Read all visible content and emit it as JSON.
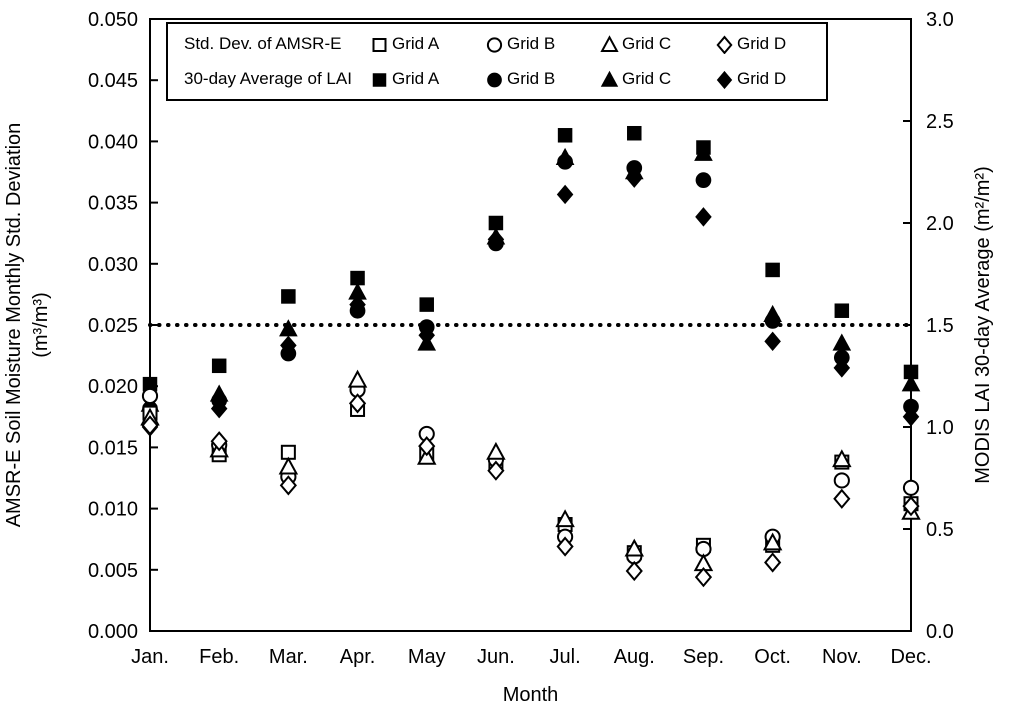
{
  "chart_data": {
    "type": "scatter",
    "title": "",
    "xlabel": "Month",
    "months": [
      "Jan.",
      "Feb.",
      "Mar.",
      "Apr.",
      "May",
      "Jun.",
      "Jul.",
      "Aug.",
      "Sep.",
      "Oct.",
      "Nov.",
      "Dec."
    ],
    "left_axis": {
      "title_lines": [
        "AMSR-E Soil Moisture Monthly Std. Deviation",
        "(m³/m³)"
      ],
      "min": 0,
      "max": 0.05,
      "ticks": [
        {
          "value": 0.0,
          "label": "0.000"
        },
        {
          "value": 0.005,
          "label": "0.005"
        },
        {
          "value": 0.01,
          "label": "0.010"
        },
        {
          "value": 0.015,
          "label": "0.015"
        },
        {
          "value": 0.02,
          "label": "0.020"
        },
        {
          "value": 0.025,
          "label": "0.025"
        },
        {
          "value": 0.03,
          "label": "0.030"
        },
        {
          "value": 0.035,
          "label": "0.035"
        },
        {
          "value": 0.04,
          "label": "0.040"
        },
        {
          "value": 0.045,
          "label": "0.045"
        },
        {
          "value": 0.05,
          "label": "0.050"
        }
      ]
    },
    "right_axis": {
      "title": "MODIS LAI 30-day Average (m²/m²)",
      "min": 0,
      "max": 3,
      "ticks": [
        {
          "value": 0.0,
          "label": "0.0"
        },
        {
          "value": 0.5,
          "label": "0.5"
        },
        {
          "value": 1.0,
          "label": "1.0"
        },
        {
          "value": 1.5,
          "label": "1.5"
        },
        {
          "value": 2.0,
          "label": "2.0"
        },
        {
          "value": 2.5,
          "label": "2.5"
        },
        {
          "value": 3.0,
          "label": "3.0"
        }
      ]
    },
    "reference_line": {
      "axis": "left",
      "value": 0.025,
      "style": "dotted",
      "color": "#000000"
    },
    "series": [
      {
        "id": "lai-grid-a",
        "group": "30-day Average of LAI",
        "grid": "Grid A",
        "marker": "square",
        "fill": "filled",
        "axis": "right",
        "values": [
          1.21,
          1.3,
          1.64,
          1.73,
          1.6,
          2.0,
          2.43,
          2.44,
          2.37,
          1.77,
          1.57,
          1.27
        ]
      },
      {
        "id": "lai-grid-b",
        "group": "30-day Average of LAI",
        "grid": "Grid B",
        "marker": "circle",
        "fill": "filled",
        "axis": "right",
        "values": [
          1.09,
          1.13,
          1.36,
          1.57,
          1.49,
          1.9,
          2.3,
          2.27,
          2.21,
          1.52,
          1.34,
          1.1
        ]
      },
      {
        "id": "lai-grid-c",
        "group": "30-day Average of LAI",
        "grid": "Grid C",
        "marker": "triangle",
        "fill": "filled",
        "axis": "right",
        "values": [
          1.11,
          1.16,
          1.48,
          1.66,
          1.41,
          1.93,
          2.32,
          2.25,
          2.34,
          1.55,
          1.41,
          1.21
        ]
      },
      {
        "id": "lai-grid-d",
        "group": "30-day Average of LAI",
        "grid": "Grid D",
        "marker": "diamond",
        "fill": "filled",
        "axis": "right",
        "values": [
          1.0,
          1.09,
          1.4,
          1.6,
          1.45,
          1.92,
          2.14,
          2.22,
          2.03,
          1.42,
          1.29,
          1.05
        ]
      },
      {
        "id": "std-grid-a",
        "group": "Std. Dev. of AMSR-E",
        "grid": "Grid A",
        "marker": "square",
        "fill": "open",
        "axis": "left",
        "values": [
          0.0178,
          0.0144,
          0.0146,
          0.0181,
          0.0144,
          0.0136,
          0.0087,
          0.0064,
          0.007,
          0.007,
          0.0138,
          0.0104
        ]
      },
      {
        "id": "std-grid-b",
        "group": "Std. Dev. of AMSR-E",
        "grid": "Grid B",
        "marker": "circle",
        "fill": "open",
        "axis": "left",
        "values": [
          0.0192,
          0.0152,
          0.0126,
          0.0197,
          0.0161,
          0.014,
          0.0077,
          0.0061,
          0.0067,
          0.0077,
          0.0123,
          0.0117
        ]
      },
      {
        "id": "std-grid-c",
        "group": "Std. Dev. of AMSR-E",
        "grid": "Grid C",
        "marker": "triangle",
        "fill": "open",
        "axis": "left",
        "values": [
          0.0174,
          0.0148,
          0.0134,
          0.0205,
          0.0142,
          0.0146,
          0.0091,
          0.0067,
          0.0055,
          0.0072,
          0.014,
          0.0097
        ]
      },
      {
        "id": "std-grid-d",
        "group": "Std. Dev. of AMSR-E",
        "grid": "Grid D",
        "marker": "diamond",
        "fill": "open",
        "axis": "left",
        "values": [
          0.0168,
          0.0155,
          0.0119,
          0.0186,
          0.0151,
          0.0131,
          0.0069,
          0.0049,
          0.0044,
          0.0056,
          0.0108,
          0.0102
        ]
      }
    ],
    "legend": {
      "rows": [
        {
          "label": "Std. Dev. of AMSR-E",
          "fill": "open",
          "items": [
            {
              "marker": "square",
              "label": "Grid A"
            },
            {
              "marker": "circle",
              "label": "Grid B"
            },
            {
              "marker": "triangle",
              "label": "Grid C"
            },
            {
              "marker": "diamond",
              "label": "Grid D"
            }
          ]
        },
        {
          "label": "30-day Average of LAI",
          "fill": "filled",
          "items": [
            {
              "marker": "square",
              "label": "Grid A"
            },
            {
              "marker": "circle",
              "label": "Grid B"
            },
            {
              "marker": "triangle",
              "label": "Grid C"
            },
            {
              "marker": "diamond",
              "label": "Grid D"
            }
          ]
        }
      ]
    },
    "colors": {
      "marker": "#000000",
      "background": "#ffffff"
    },
    "layout_hints": {
      "grid": false,
      "legend_position": "top-inside",
      "frame": true
    }
  }
}
